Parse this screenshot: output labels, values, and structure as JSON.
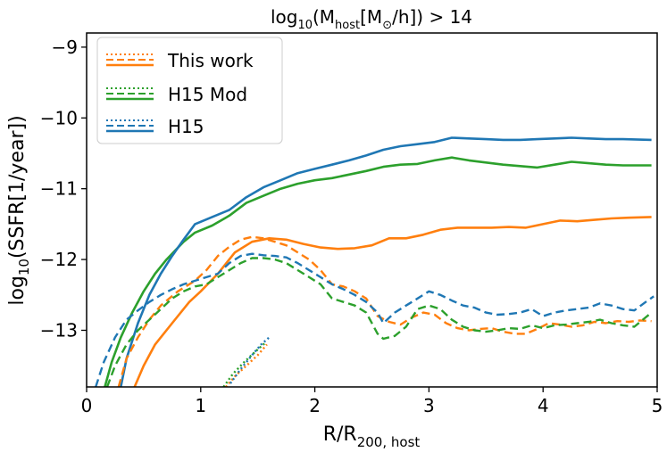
{
  "chart_data": {
    "type": "line",
    "title": {
      "main": "log",
      "main_sub": "10",
      "paren": "(M",
      "host_sub": "host",
      "unit_open": "[M",
      "sun": "⊙",
      "unit_close": "/h]) > 14"
    },
    "xlabel": {
      "main": "R/R",
      "sub": "200, host"
    },
    "ylabel": {
      "main": "log",
      "sub": "10",
      "rest": "(SSFR[1/year])"
    },
    "xlim": [
      0,
      5
    ],
    "ylim": [
      -13.8,
      -8.8
    ],
    "x_ticks": [
      0,
      1,
      2,
      3,
      4,
      5
    ],
    "x_tick_labels": [
      "0",
      "1",
      "2",
      "3",
      "4",
      "5"
    ],
    "y_ticks": [
      -13,
      -12,
      -11,
      -10,
      -9
    ],
    "y_tick_labels": [
      "−13",
      "−12",
      "−11",
      "−10",
      "−9"
    ],
    "legend": {
      "location": "top-left",
      "entries": [
        "This work",
        "H15 Mod",
        "H15"
      ]
    },
    "series": [
      {
        "name": "This work",
        "color": "#ff7f0e",
        "style": "solid",
        "points": [
          [
            0.42,
            -13.8
          ],
          [
            0.5,
            -13.5
          ],
          [
            0.6,
            -13.2
          ],
          [
            0.75,
            -12.9
          ],
          [
            0.9,
            -12.6
          ],
          [
            1.0,
            -12.45
          ],
          [
            1.15,
            -12.2
          ],
          [
            1.3,
            -11.9
          ],
          [
            1.45,
            -11.75
          ],
          [
            1.6,
            -11.7
          ],
          [
            1.75,
            -11.72
          ],
          [
            1.9,
            -11.78
          ],
          [
            2.05,
            -11.83
          ],
          [
            2.2,
            -11.85
          ],
          [
            2.35,
            -11.84
          ],
          [
            2.5,
            -11.8
          ],
          [
            2.65,
            -11.7
          ],
          [
            2.8,
            -11.7
          ],
          [
            2.95,
            -11.65
          ],
          [
            3.1,
            -11.58
          ],
          [
            3.25,
            -11.55
          ],
          [
            3.4,
            -11.55
          ],
          [
            3.55,
            -11.55
          ],
          [
            3.7,
            -11.54
          ],
          [
            3.85,
            -11.55
          ],
          [
            4.0,
            -11.5
          ],
          [
            4.15,
            -11.45
          ],
          [
            4.3,
            -11.46
          ],
          [
            4.45,
            -11.44
          ],
          [
            4.6,
            -11.42
          ],
          [
            4.75,
            -11.41
          ],
          [
            4.95,
            -11.4
          ]
        ]
      },
      {
        "name": "H15 Mod",
        "color": "#2ca02c",
        "style": "solid",
        "points": [
          [
            0.16,
            -13.8
          ],
          [
            0.22,
            -13.45
          ],
          [
            0.3,
            -13.1
          ],
          [
            0.4,
            -12.75
          ],
          [
            0.5,
            -12.45
          ],
          [
            0.6,
            -12.2
          ],
          [
            0.7,
            -12.0
          ],
          [
            0.85,
            -11.75
          ],
          [
            0.95,
            -11.62
          ],
          [
            1.1,
            -11.52
          ],
          [
            1.25,
            -11.38
          ],
          [
            1.4,
            -11.2
          ],
          [
            1.55,
            -11.1
          ],
          [
            1.7,
            -11.0
          ],
          [
            1.85,
            -10.93
          ],
          [
            2.0,
            -10.88
          ],
          [
            2.15,
            -10.85
          ],
          [
            2.3,
            -10.8
          ],
          [
            2.45,
            -10.75
          ],
          [
            2.6,
            -10.69
          ],
          [
            2.75,
            -10.66
          ],
          [
            2.9,
            -10.65
          ],
          [
            3.05,
            -10.6
          ],
          [
            3.2,
            -10.56
          ],
          [
            3.35,
            -10.6
          ],
          [
            3.5,
            -10.63
          ],
          [
            3.65,
            -10.66
          ],
          [
            3.8,
            -10.68
          ],
          [
            3.95,
            -10.7
          ],
          [
            4.1,
            -10.66
          ],
          [
            4.25,
            -10.62
          ],
          [
            4.4,
            -10.64
          ],
          [
            4.55,
            -10.66
          ],
          [
            4.7,
            -10.67
          ],
          [
            4.95,
            -10.67
          ]
        ]
      },
      {
        "name": "H15",
        "color": "#1f77b4",
        "style": "solid",
        "points": [
          [
            0.3,
            -13.8
          ],
          [
            0.35,
            -13.4
          ],
          [
            0.45,
            -12.9
          ],
          [
            0.55,
            -12.5
          ],
          [
            0.65,
            -12.2
          ],
          [
            0.75,
            -11.95
          ],
          [
            0.85,
            -11.72
          ],
          [
            0.95,
            -11.5
          ],
          [
            1.1,
            -11.4
          ],
          [
            1.25,
            -11.3
          ],
          [
            1.4,
            -11.12
          ],
          [
            1.55,
            -10.98
          ],
          [
            1.7,
            -10.88
          ],
          [
            1.85,
            -10.78
          ],
          [
            2.0,
            -10.72
          ],
          [
            2.15,
            -10.66
          ],
          [
            2.3,
            -10.6
          ],
          [
            2.45,
            -10.53
          ],
          [
            2.6,
            -10.45
          ],
          [
            2.75,
            -10.4
          ],
          [
            2.9,
            -10.37
          ],
          [
            3.05,
            -10.34
          ],
          [
            3.2,
            -10.28
          ],
          [
            3.35,
            -10.29
          ],
          [
            3.5,
            -10.3
          ],
          [
            3.65,
            -10.31
          ],
          [
            3.8,
            -10.31
          ],
          [
            3.95,
            -10.3
          ],
          [
            4.1,
            -10.29
          ],
          [
            4.25,
            -10.28
          ],
          [
            4.4,
            -10.29
          ],
          [
            4.55,
            -10.3
          ],
          [
            4.7,
            -10.3
          ],
          [
            4.95,
            -10.31
          ]
        ]
      },
      {
        "name": "This work (dashed)",
        "color": "#ff7f0e",
        "style": "dashed",
        "points": [
          [
            0.28,
            -13.8
          ],
          [
            0.35,
            -13.4
          ],
          [
            0.45,
            -13.1
          ],
          [
            0.55,
            -12.85
          ],
          [
            0.65,
            -12.65
          ],
          [
            0.8,
            -12.45
          ],
          [
            0.95,
            -12.3
          ],
          [
            1.05,
            -12.15
          ],
          [
            1.15,
            -11.95
          ],
          [
            1.25,
            -11.82
          ],
          [
            1.35,
            -11.72
          ],
          [
            1.45,
            -11.68
          ],
          [
            1.55,
            -11.7
          ],
          [
            1.65,
            -11.75
          ],
          [
            1.75,
            -11.8
          ],
          [
            1.85,
            -11.9
          ],
          [
            1.95,
            -12.0
          ],
          [
            2.05,
            -12.15
          ],
          [
            2.15,
            -12.35
          ],
          [
            2.25,
            -12.38
          ],
          [
            2.35,
            -12.45
          ],
          [
            2.45,
            -12.55
          ],
          [
            2.55,
            -12.8
          ],
          [
            2.65,
            -12.88
          ],
          [
            2.75,
            -12.92
          ],
          [
            2.85,
            -12.82
          ],
          [
            2.95,
            -12.75
          ],
          [
            3.05,
            -12.78
          ],
          [
            3.15,
            -12.9
          ],
          [
            3.25,
            -12.97
          ],
          [
            3.35,
            -13.0
          ],
          [
            3.45,
            -12.98
          ],
          [
            3.55,
            -12.97
          ],
          [
            3.65,
            -13.02
          ],
          [
            3.75,
            -13.05
          ],
          [
            3.85,
            -13.05
          ],
          [
            3.95,
            -12.98
          ],
          [
            4.05,
            -12.9
          ],
          [
            4.15,
            -12.92
          ],
          [
            4.25,
            -12.95
          ],
          [
            4.35,
            -12.93
          ],
          [
            4.45,
            -12.88
          ],
          [
            4.55,
            -12.9
          ],
          [
            4.65,
            -12.87
          ],
          [
            4.75,
            -12.88
          ],
          [
            4.85,
            -12.86
          ],
          [
            4.95,
            -12.87
          ]
        ]
      },
      {
        "name": "H15 Mod (dashed)",
        "color": "#2ca02c",
        "style": "dashed",
        "points": [
          [
            0.18,
            -13.8
          ],
          [
            0.25,
            -13.5
          ],
          [
            0.35,
            -13.2
          ],
          [
            0.45,
            -13.0
          ],
          [
            0.55,
            -12.85
          ],
          [
            0.65,
            -12.7
          ],
          [
            0.75,
            -12.55
          ],
          [
            0.85,
            -12.45
          ],
          [
            0.95,
            -12.38
          ],
          [
            1.05,
            -12.35
          ],
          [
            1.15,
            -12.25
          ],
          [
            1.25,
            -12.15
          ],
          [
            1.35,
            -12.05
          ],
          [
            1.45,
            -11.98
          ],
          [
            1.55,
            -11.98
          ],
          [
            1.65,
            -12.0
          ],
          [
            1.75,
            -12.05
          ],
          [
            1.85,
            -12.15
          ],
          [
            1.95,
            -12.25
          ],
          [
            2.05,
            -12.35
          ],
          [
            2.15,
            -12.55
          ],
          [
            2.25,
            -12.6
          ],
          [
            2.35,
            -12.65
          ],
          [
            2.45,
            -12.75
          ],
          [
            2.55,
            -13.05
          ],
          [
            2.6,
            -13.12
          ],
          [
            2.7,
            -13.08
          ],
          [
            2.8,
            -12.95
          ],
          [
            2.9,
            -12.7
          ],
          [
            3.0,
            -12.65
          ],
          [
            3.1,
            -12.7
          ],
          [
            3.2,
            -12.85
          ],
          [
            3.3,
            -12.95
          ],
          [
            3.4,
            -13.0
          ],
          [
            3.5,
            -13.02
          ],
          [
            3.6,
            -13.0
          ],
          [
            3.7,
            -12.97
          ],
          [
            3.8,
            -12.98
          ],
          [
            3.9,
            -12.93
          ],
          [
            4.0,
            -12.97
          ],
          [
            4.1,
            -12.93
          ],
          [
            4.2,
            -12.92
          ],
          [
            4.3,
            -12.9
          ],
          [
            4.4,
            -12.88
          ],
          [
            4.5,
            -12.85
          ],
          [
            4.6,
            -12.9
          ],
          [
            4.7,
            -12.93
          ],
          [
            4.8,
            -12.95
          ],
          [
            4.95,
            -12.75
          ]
        ]
      },
      {
        "name": "H15 (dashed)",
        "color": "#1f77b4",
        "style": "dashed",
        "points": [
          [
            0.08,
            -13.8
          ],
          [
            0.15,
            -13.45
          ],
          [
            0.25,
            -13.1
          ],
          [
            0.35,
            -12.85
          ],
          [
            0.45,
            -12.72
          ],
          [
            0.55,
            -12.6
          ],
          [
            0.65,
            -12.5
          ],
          [
            0.75,
            -12.42
          ],
          [
            0.85,
            -12.35
          ],
          [
            0.95,
            -12.3
          ],
          [
            1.05,
            -12.25
          ],
          [
            1.15,
            -12.2
          ],
          [
            1.25,
            -12.05
          ],
          [
            1.35,
            -11.95
          ],
          [
            1.45,
            -11.92
          ],
          [
            1.55,
            -11.94
          ],
          [
            1.65,
            -11.95
          ],
          [
            1.75,
            -11.97
          ],
          [
            1.85,
            -12.05
          ],
          [
            1.95,
            -12.15
          ],
          [
            2.05,
            -12.25
          ],
          [
            2.15,
            -12.35
          ],
          [
            2.25,
            -12.42
          ],
          [
            2.35,
            -12.5
          ],
          [
            2.45,
            -12.6
          ],
          [
            2.55,
            -12.75
          ],
          [
            2.6,
            -12.9
          ],
          [
            2.7,
            -12.75
          ],
          [
            2.8,
            -12.65
          ],
          [
            2.9,
            -12.55
          ],
          [
            3.0,
            -12.45
          ],
          [
            3.1,
            -12.5
          ],
          [
            3.2,
            -12.58
          ],
          [
            3.3,
            -12.65
          ],
          [
            3.4,
            -12.68
          ],
          [
            3.5,
            -12.75
          ],
          [
            3.6,
            -12.78
          ],
          [
            3.7,
            -12.77
          ],
          [
            3.8,
            -12.75
          ],
          [
            3.9,
            -12.7
          ],
          [
            4.0,
            -12.8
          ],
          [
            4.1,
            -12.75
          ],
          [
            4.2,
            -12.72
          ],
          [
            4.3,
            -12.7
          ],
          [
            4.4,
            -12.68
          ],
          [
            4.5,
            -12.62
          ],
          [
            4.6,
            -12.65
          ],
          [
            4.7,
            -12.7
          ],
          [
            4.8,
            -12.72
          ],
          [
            4.9,
            -12.6
          ],
          [
            4.97,
            -12.52
          ]
        ]
      },
      {
        "name": "This work (dotted)",
        "color": "#ff7f0e",
        "style": "dotted",
        "points": [
          [
            1.22,
            -13.8
          ],
          [
            1.3,
            -13.65
          ],
          [
            1.4,
            -13.5
          ],
          [
            1.5,
            -13.35
          ],
          [
            1.58,
            -13.2
          ]
        ]
      },
      {
        "name": "H15 Mod (dotted)",
        "color": "#2ca02c",
        "style": "dotted",
        "points": [
          [
            1.2,
            -13.8
          ],
          [
            1.28,
            -13.62
          ],
          [
            1.38,
            -13.45
          ],
          [
            1.48,
            -13.3
          ],
          [
            1.57,
            -13.17
          ]
        ]
      },
      {
        "name": "H15 (dotted)",
        "color": "#1f77b4",
        "style": "dotted",
        "points": [
          [
            1.26,
            -13.75
          ],
          [
            1.35,
            -13.55
          ],
          [
            1.45,
            -13.35
          ],
          [
            1.53,
            -13.2
          ],
          [
            1.6,
            -13.1
          ]
        ]
      }
    ]
  }
}
